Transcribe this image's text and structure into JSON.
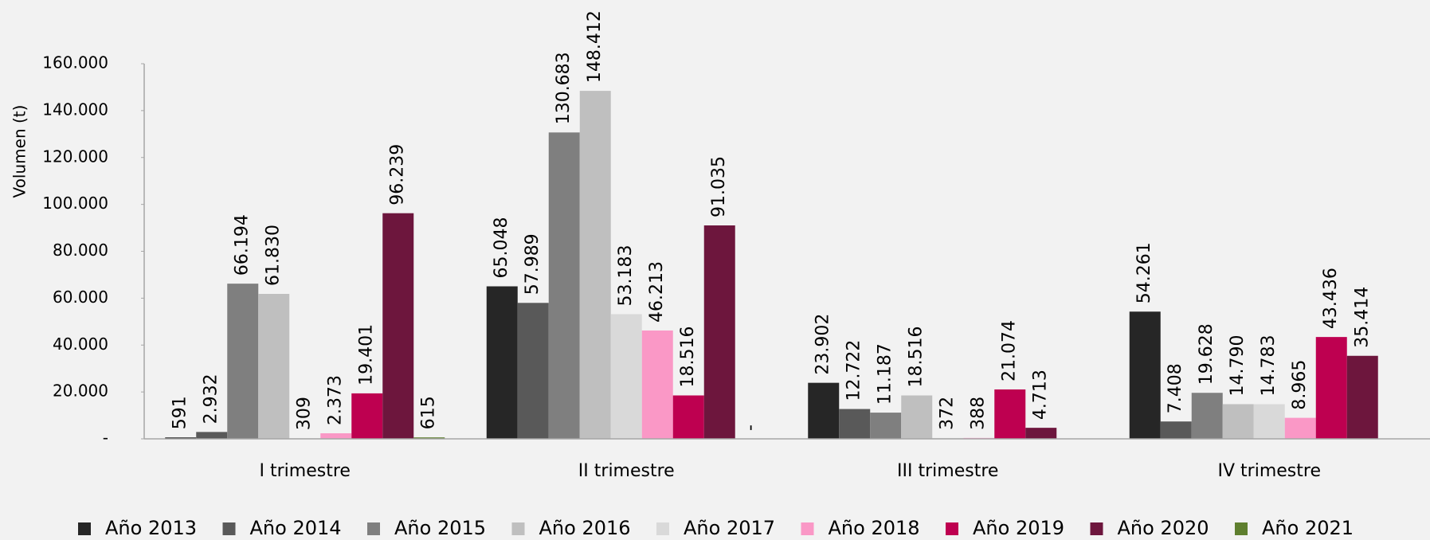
{
  "chart_data": {
    "type": "bar",
    "y_label": "Volumen (t)",
    "categories": [
      "I trimestre",
      "II trimestre",
      "III trimestre",
      "IV trimestre"
    ],
    "ylim": [
      0,
      160000
    ],
    "yticks": [
      {
        "value": 0,
        "label": "-"
      },
      {
        "value": 20000,
        "label": "20.000"
      },
      {
        "value": 40000,
        "label": "40.000"
      },
      {
        "value": 60000,
        "label": "60.000"
      },
      {
        "value": 80000,
        "label": "80.000"
      },
      {
        "value": 100000,
        "label": "100.000"
      },
      {
        "value": 120000,
        "label": "120.000"
      },
      {
        "value": 140000,
        "label": "140.000"
      },
      {
        "value": 160000,
        "label": "160.000"
      }
    ],
    "legend": "bottom",
    "series": [
      {
        "name": "Año 2013",
        "color": "#262626",
        "values": [
          591,
          65048,
          23902,
          54261
        ],
        "value_labels": [
          "591",
          "65.048",
          "23.902",
          "54.261"
        ]
      },
      {
        "name": "Año 2014",
        "color": "#595959",
        "values": [
          2932,
          57989,
          12722,
          7408
        ],
        "value_labels": [
          "2.932",
          "57.989",
          "12.722",
          "7.408"
        ]
      },
      {
        "name": "Año 2015",
        "color": "#7f7f7f",
        "values": [
          66194,
          130683,
          11187,
          19628
        ],
        "value_labels": [
          "66.194",
          "130.683",
          "11.187",
          "19.628"
        ]
      },
      {
        "name": "Año 2016",
        "color": "#bfbfbf",
        "values": [
          61830,
          148412,
          18516,
          14790
        ],
        "value_labels": [
          "61.830",
          "148.412",
          "18.516",
          "14.790"
        ]
      },
      {
        "name": "Año 2017",
        "color": "#d9d9d9",
        "values": [
          309,
          53183,
          372,
          14783
        ],
        "value_labels": [
          "309",
          "53.183",
          "372",
          "14.783"
        ]
      },
      {
        "name": "Año 2018",
        "color": "#fa98c6",
        "values": [
          2373,
          46213,
          388,
          8965
        ],
        "value_labels": [
          "2.373",
          "46.213",
          "388",
          "8.965"
        ]
      },
      {
        "name": "Año 2019",
        "color": "#be0050",
        "values": [
          19401,
          18516,
          21074,
          43436
        ],
        "value_labels": [
          "19.401",
          "18.516",
          "21.074",
          "43.436"
        ]
      },
      {
        "name": "Año 2020",
        "color": "#6d163d",
        "values": [
          96239,
          91035,
          4713,
          35414
        ],
        "value_labels": [
          "96.239",
          "91.035",
          "4.713",
          "35.414"
        ]
      },
      {
        "name": "Año 2021",
        "color": "#5f7f2f",
        "values": [
          615,
          0,
          null,
          null
        ],
        "value_labels": [
          "615",
          "-",
          null,
          null
        ]
      }
    ]
  }
}
